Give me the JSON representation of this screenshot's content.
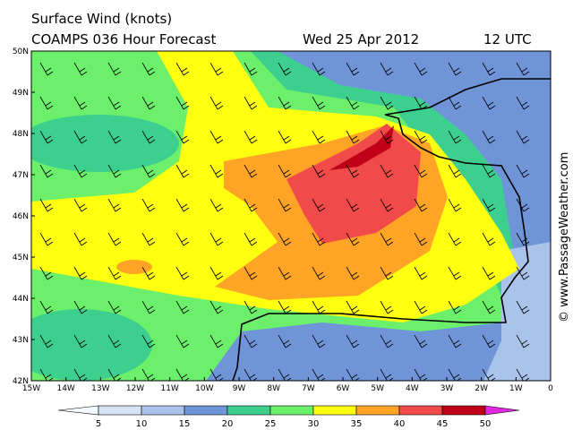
{
  "header": {
    "title": "Surface Wind (knots)",
    "model": "COAMPS 036 Hour Forecast",
    "date": "Wed 25 Apr 2012",
    "time": "12 UTC"
  },
  "map": {
    "lat_labels": [
      "50N",
      "49N",
      "48N",
      "47N",
      "46N",
      "45N",
      "44N",
      "43N",
      "42N"
    ],
    "lon_labels": [
      "15W",
      "14W",
      "13W",
      "12W",
      "11W",
      "10W",
      "9W",
      "8W",
      "7W",
      "6W",
      "5W",
      "4W",
      "3W",
      "2W",
      "1W",
      "0"
    ]
  },
  "colorbar": {
    "ticks": [
      5,
      10,
      15,
      20,
      25,
      30,
      35,
      40,
      45,
      50
    ],
    "colors": [
      "#f4f8ff",
      "#d6e4f6",
      "#a9c3ea",
      "#6f95d8",
      "#3dcf8e",
      "#6cf06c",
      "#ffff10",
      "#ffa424",
      "#f04a4a",
      "#c00018",
      "#e028e0"
    ]
  },
  "credit": "© www.PassageWeather.com"
}
